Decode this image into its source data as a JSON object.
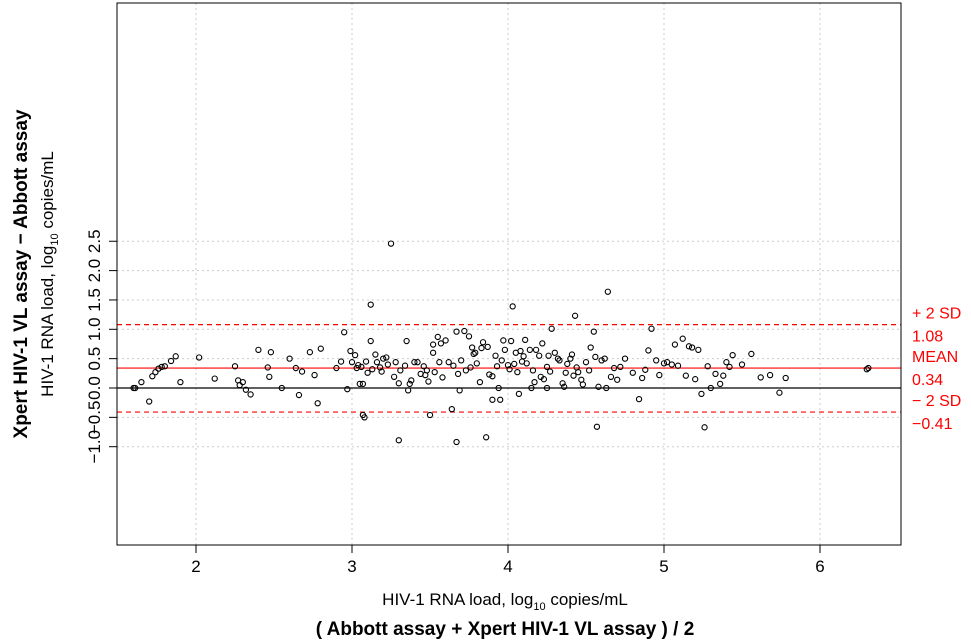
{
  "colors": {
    "reference": "#ff0000",
    "points": "#000000",
    "grid": "#cccccc"
  },
  "chart_data": {
    "type": "scatter",
    "title": "",
    "xlabel_top": "HIV-1 RNA load, log",
    "xlabel_sub": "10",
    "xlabel_tail": " copies/mL",
    "xlabel_bottom": "( Abbott assay + Xpert HIV-1 VL assay ) / 2",
    "ylabel_bold": "Xpert HIV-1 VL assay − Abbott assay",
    "ylabel_top": "HIV-1 RNA load, log",
    "ylabel_sub": "10",
    "ylabel_tail": " copies/mL",
    "xlim": [
      1.6,
      6.35
    ],
    "ylim": [
      -1.0,
      2.5
    ],
    "xticks": [
      "2",
      "3",
      "4",
      "5",
      "6"
    ],
    "yticks": [
      "−1.0",
      "−0.5",
      "0.0",
      "0.5",
      "1.0",
      "1.5",
      "2.0",
      "2.5"
    ],
    "grid": true,
    "reference_lines": [
      {
        "label": "+ 2 SD",
        "value_label": "1.08",
        "y": 1.08,
        "style": "dashed"
      },
      {
        "label": "MEAN",
        "value_label": "0.34",
        "y": 0.34,
        "style": "solid"
      },
      {
        "label": "− 2 SD",
        "value_label": "−0.41",
        "y": -0.41,
        "style": "dashed"
      }
    ],
    "zero_line": 0,
    "points": [
      [
        1.6,
        0.0
      ],
      [
        1.61,
        0.0
      ],
      [
        1.65,
        0.1
      ],
      [
        1.7,
        -0.23
      ],
      [
        1.72,
        0.2
      ],
      [
        1.74,
        0.27
      ],
      [
        1.76,
        0.33
      ],
      [
        1.78,
        0.36
      ],
      [
        1.8,
        0.37
      ],
      [
        1.84,
        0.46
      ],
      [
        1.87,
        0.54
      ],
      [
        1.9,
        0.1
      ],
      [
        2.02,
        0.52
      ],
      [
        2.12,
        0.16
      ],
      [
        2.25,
        0.37
      ],
      [
        2.27,
        0.13
      ],
      [
        2.28,
        0.05
      ],
      [
        2.3,
        0.1
      ],
      [
        2.32,
        -0.03
      ],
      [
        2.35,
        -0.11
      ],
      [
        2.4,
        0.65
      ],
      [
        2.46,
        0.35
      ],
      [
        2.47,
        0.19
      ],
      [
        2.48,
        0.61
      ],
      [
        2.6,
        0.5
      ],
      [
        2.64,
        0.34
      ],
      [
        2.66,
        -0.12
      ],
      [
        2.68,
        0.28
      ],
      [
        2.73,
        0.61
      ],
      [
        2.76,
        0.22
      ],
      [
        2.78,
        -0.26
      ],
      [
        2.8,
        0.67
      ],
      [
        2.9,
        0.34
      ],
      [
        2.93,
        0.45
      ],
      [
        2.95,
        0.95
      ],
      [
        2.97,
        -0.02
      ],
      [
        2.99,
        0.63
      ],
      [
        3.0,
        0.44
      ],
      [
        3.02,
        0.56
      ],
      [
        3.03,
        0.34
      ],
      [
        3.04,
        0.39
      ],
      [
        3.05,
        0.07
      ],
      [
        3.06,
        0.36
      ],
      [
        3.07,
        0.07
      ],
      [
        3.07,
        -0.46
      ],
      [
        3.08,
        -0.5
      ],
      [
        3.09,
        0.45
      ],
      [
        3.1,
        0.26
      ],
      [
        3.12,
        0.8
      ],
      [
        3.13,
        0.32
      ],
      [
        3.15,
        0.57
      ],
      [
        3.16,
        0.44
      ],
      [
        3.18,
        0.35
      ],
      [
        3.19,
        0.28
      ],
      [
        3.2,
        0.5
      ],
      [
        3.22,
        0.52
      ],
      [
        3.23,
        0.4
      ],
      [
        3.25,
        2.46
      ],
      [
        3.27,
        0.19
      ],
      [
        3.28,
        0.44
      ],
      [
        3.3,
        0.08
      ],
      [
        3.31,
        0.3
      ],
      [
        3.34,
        0.38
      ],
      [
        3.35,
        0.8
      ],
      [
        3.36,
        -0.04
      ],
      [
        3.37,
        0.07
      ],
      [
        3.38,
        0.13
      ],
      [
        3.4,
        0.44
      ],
      [
        3.42,
        0.44
      ],
      [
        3.44,
        0.24
      ],
      [
        3.46,
        0.37
      ],
      [
        3.47,
        0.22
      ],
      [
        3.48,
        0.3
      ],
      [
        3.49,
        0.11
      ],
      [
        3.5,
        -0.46
      ],
      [
        3.52,
        0.74
      ],
      [
        3.53,
        0.27
      ],
      [
        3.55,
        0.87
      ],
      [
        3.56,
        0.44
      ],
      [
        3.57,
        0.76
      ],
      [
        3.58,
        0.18
      ],
      [
        3.6,
        0.81
      ],
      [
        3.62,
        0.44
      ],
      [
        3.64,
        -0.36
      ],
      [
        3.65,
        0.38
      ],
      [
        3.67,
        0.96
      ],
      [
        3.68,
        0.24
      ],
      [
        3.69,
        -0.04
      ],
      [
        3.7,
        0.47
      ],
      [
        3.72,
        0.97
      ],
      [
        3.73,
        0.3
      ],
      [
        3.75,
        0.88
      ],
      [
        3.76,
        0.35
      ],
      [
        3.77,
        0.69
      ],
      [
        3.78,
        0.58
      ],
      [
        3.79,
        0.6
      ],
      [
        3.8,
        0.42
      ],
      [
        3.82,
        0.1
      ],
      [
        3.83,
        0.68
      ],
      [
        3.84,
        0.78
      ],
      [
        3.86,
        -0.84
      ],
      [
        3.87,
        0.7
      ],
      [
        3.88,
        0.23
      ],
      [
        3.9,
        -0.2
      ],
      [
        3.92,
        0.55
      ],
      [
        3.93,
        0.37
      ],
      [
        3.94,
        0.0
      ],
      [
        3.95,
        -0.2
      ],
      [
        3.96,
        0.47
      ],
      [
        3.97,
        0.81
      ],
      [
        3.98,
        0.65
      ],
      [
        4.0,
        0.39
      ],
      [
        4.01,
        0.32
      ],
      [
        4.02,
        0.8
      ],
      [
        4.03,
        1.39
      ],
      [
        4.04,
        0.41
      ],
      [
        4.05,
        0.6
      ],
      [
        4.06,
        0.27
      ],
      [
        4.07,
        -0.1
      ],
      [
        4.08,
        0.63
      ],
      [
        4.09,
        0.45
      ],
      [
        4.1,
        0.54
      ],
      [
        4.11,
        0.82
      ],
      [
        4.12,
        0.42
      ],
      [
        4.14,
        0.65
      ],
      [
        4.16,
        0.3
      ],
      [
        4.17,
        0.1
      ],
      [
        4.18,
        0.65
      ],
      [
        4.2,
        0.55
      ],
      [
        4.21,
        0.19
      ],
      [
        4.22,
        0.76
      ],
      [
        4.23,
        0.15
      ],
      [
        4.25,
        0.36
      ],
      [
        4.26,
        0.55
      ],
      [
        4.27,
        0.28
      ],
      [
        4.28,
        1.01
      ],
      [
        4.3,
        0.6
      ],
      [
        4.32,
        0.5
      ],
      [
        4.33,
        0.47
      ],
      [
        4.35,
        0.08
      ],
      [
        4.36,
        0.02
      ],
      [
        4.37,
        0.26
      ],
      [
        4.38,
        0.41
      ],
      [
        4.4,
        0.5
      ],
      [
        4.41,
        0.57
      ],
      [
        4.42,
        0.21
      ],
      [
        4.43,
        1.23
      ],
      [
        4.44,
        0.35
      ],
      [
        4.45,
        0.27
      ],
      [
        4.47,
        0.14
      ],
      [
        4.48,
        0.06
      ],
      [
        4.5,
        0.44
      ],
      [
        4.52,
        0.3
      ],
      [
        4.53,
        0.69
      ],
      [
        4.55,
        0.96
      ],
      [
        4.56,
        0.53
      ],
      [
        4.57,
        -0.66
      ],
      [
        4.58,
        0.02
      ],
      [
        4.6,
        0.47
      ],
      [
        4.62,
        0.5
      ],
      [
        4.63,
        0.0
      ],
      [
        4.64,
        1.64
      ],
      [
        4.66,
        0.19
      ],
      [
        4.68,
        0.34
      ],
      [
        4.7,
        0.14
      ],
      [
        4.72,
        0.36
      ],
      [
        4.75,
        0.5
      ],
      [
        4.8,
        0.26
      ],
      [
        4.84,
        -0.19
      ],
      [
        4.86,
        0.17
      ],
      [
        4.88,
        0.31
      ],
      [
        4.9,
        0.64
      ],
      [
        4.92,
        1.01
      ],
      [
        4.95,
        0.47
      ],
      [
        4.97,
        0.22
      ],
      [
        5.0,
        0.42
      ],
      [
        5.02,
        0.44
      ],
      [
        5.05,
        0.4
      ],
      [
        5.07,
        0.74
      ],
      [
        5.09,
        0.38
      ],
      [
        5.12,
        0.84
      ],
      [
        5.14,
        0.21
      ],
      [
        5.16,
        0.71
      ],
      [
        5.18,
        0.69
      ],
      [
        5.2,
        0.15
      ],
      [
        5.22,
        0.65
      ],
      [
        5.24,
        -0.1
      ],
      [
        5.26,
        -0.67
      ],
      [
        5.28,
        0.37
      ],
      [
        5.3,
        0.0
      ],
      [
        5.33,
        0.24
      ],
      [
        5.36,
        0.07
      ],
      [
        5.38,
        0.21
      ],
      [
        5.4,
        0.44
      ],
      [
        5.42,
        0.36
      ],
      [
        5.44,
        0.56
      ],
      [
        5.5,
        0.4
      ],
      [
        5.56,
        0.58
      ],
      [
        5.62,
        0.18
      ],
      [
        5.68,
        0.22
      ],
      [
        5.74,
        -0.08
      ],
      [
        5.78,
        0.17
      ],
      [
        6.3,
        0.32
      ],
      [
        6.31,
        0.34
      ],
      [
        3.3,
        -0.89
      ],
      [
        3.67,
        -0.92
      ],
      [
        3.12,
        1.42
      ],
      [
        4.15,
        0.0
      ],
      [
        3.9,
        0.2
      ],
      [
        4.25,
        0.0
      ],
      [
        3.52,
        0.6
      ],
      [
        2.55,
        0.0
      ]
    ]
  }
}
